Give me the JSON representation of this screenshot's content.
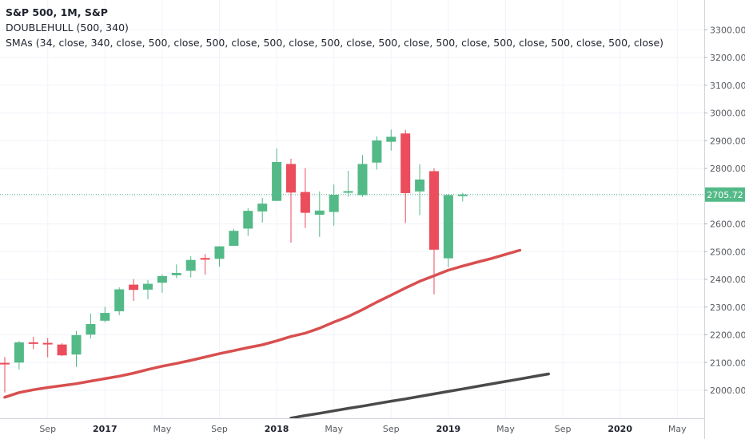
{
  "legend": {
    "title": "S&P 500, 1M, S&P",
    "line2": "DOUBLEHULL (500, 340)",
    "line3": "SMAs (34, close, 340, close, 500, close, 500, close, 500, close, 500, close, 500, close, 500, close, 500, close, 500, close, 500, close)"
  },
  "price_label": "2705.72",
  "colors": {
    "up": "#53b987",
    "down": "#eb4d5c",
    "sma_red": "#d84f4f",
    "sma_dark": "#4a4a4a",
    "grid": "#f0f3fa",
    "price_line": "#53b987",
    "axis_text": "#55595f"
  },
  "chart_data": {
    "type": "candlestick",
    "interval": "1M",
    "y_axis_side": "right",
    "ylim": [
      1900,
      3390
    ],
    "yticks": [
      2000,
      2100,
      2200,
      2300,
      2400,
      2500,
      2600,
      2700,
      2800,
      2900,
      3000,
      3100,
      3200,
      3300
    ],
    "ytick_labels": [
      "2000.00",
      "2100.00",
      "2200.00",
      "2300.00",
      "2400.00",
      "2500.00",
      "2600.00",
      "2700.00",
      "2800.00",
      "2900.00",
      "3000.00",
      "3100.00",
      "3200.00",
      "3300.00"
    ],
    "x_labels": [
      {
        "text": "Sep",
        "month_index": 3,
        "bold": false
      },
      {
        "text": "2017",
        "month_index": 7,
        "bold": true
      },
      {
        "text": "May",
        "month_index": 11,
        "bold": false
      },
      {
        "text": "Sep",
        "month_index": 15,
        "bold": false
      },
      {
        "text": "2018",
        "month_index": 19,
        "bold": true
      },
      {
        "text": "May",
        "month_index": 23,
        "bold": false
      },
      {
        "text": "Sep",
        "month_index": 27,
        "bold": false
      },
      {
        "text": "2019",
        "month_index": 31,
        "bold": true
      },
      {
        "text": "May",
        "month_index": 35,
        "bold": false
      },
      {
        "text": "Sep",
        "month_index": 39,
        "bold": false
      },
      {
        "text": "2020",
        "month_index": 43,
        "bold": true
      },
      {
        "text": "May",
        "month_index": 47,
        "bold": false
      }
    ],
    "candles": [
      {
        "date": "2016-06",
        "o": 2099,
        "h": 2120,
        "l": 1992,
        "c": 2098
      },
      {
        "date": "2016-07",
        "o": 2100,
        "h": 2178,
        "l": 2075,
        "c": 2173
      },
      {
        "date": "2016-08",
        "o": 2173,
        "h": 2193,
        "l": 2148,
        "c": 2171
      },
      {
        "date": "2016-09",
        "o": 2171,
        "h": 2188,
        "l": 2119,
        "c": 2168
      },
      {
        "date": "2016-10",
        "o": 2165,
        "h": 2170,
        "l": 2123,
        "c": 2126
      },
      {
        "date": "2016-11",
        "o": 2129,
        "h": 2214,
        "l": 2084,
        "c": 2199
      },
      {
        "date": "2016-12",
        "o": 2201,
        "h": 2277,
        "l": 2187,
        "c": 2239
      },
      {
        "date": "2017-01",
        "o": 2251,
        "h": 2301,
        "l": 2245,
        "c": 2279
      },
      {
        "date": "2017-02",
        "o": 2285,
        "h": 2371,
        "l": 2271,
        "c": 2364
      },
      {
        "date": "2017-03",
        "o": 2381,
        "h": 2401,
        "l": 2322,
        "c": 2362
      },
      {
        "date": "2017-04",
        "o": 2363,
        "h": 2398,
        "l": 2328,
        "c": 2384
      },
      {
        "date": "2017-05",
        "o": 2388,
        "h": 2418,
        "l": 2352,
        "c": 2412
      },
      {
        "date": "2017-06",
        "o": 2415,
        "h": 2454,
        "l": 2405,
        "c": 2423
      },
      {
        "date": "2017-07",
        "o": 2431,
        "h": 2484,
        "l": 2407,
        "c": 2470
      },
      {
        "date": "2017-08",
        "o": 2477,
        "h": 2491,
        "l": 2417,
        "c": 2471
      },
      {
        "date": "2017-09",
        "o": 2474,
        "h": 2519,
        "l": 2446,
        "c": 2519
      },
      {
        "date": "2017-10",
        "o": 2521,
        "h": 2582,
        "l": 2520,
        "c": 2575
      },
      {
        "date": "2017-11",
        "o": 2583,
        "h": 2657,
        "l": 2557,
        "c": 2647
      },
      {
        "date": "2017-12",
        "o": 2645,
        "h": 2694,
        "l": 2605,
        "c": 2673
      },
      {
        "date": "2018-01",
        "o": 2683,
        "h": 2872,
        "l": 2682,
        "c": 2823
      },
      {
        "date": "2018-02",
        "o": 2816,
        "h": 2835,
        "l": 2532,
        "c": 2713
      },
      {
        "date": "2018-03",
        "o": 2715,
        "h": 2801,
        "l": 2585,
        "c": 2640
      },
      {
        "date": "2018-04",
        "o": 2633,
        "h": 2717,
        "l": 2553,
        "c": 2648
      },
      {
        "date": "2018-05",
        "o": 2643,
        "h": 2742,
        "l": 2594,
        "c": 2705
      },
      {
        "date": "2018-06",
        "o": 2718,
        "h": 2791,
        "l": 2698,
        "c": 2718
      },
      {
        "date": "2018-07",
        "o": 2704,
        "h": 2848,
        "l": 2698,
        "c": 2816
      },
      {
        "date": "2018-08",
        "o": 2821,
        "h": 2916,
        "l": 2796,
        "c": 2901
      },
      {
        "date": "2018-09",
        "o": 2896,
        "h": 2940,
        "l": 2864,
        "c": 2914
      },
      {
        "date": "2018-10",
        "o": 2926,
        "h": 2939,
        "l": 2603,
        "c": 2711
      },
      {
        "date": "2018-11",
        "o": 2717,
        "h": 2815,
        "l": 2631,
        "c": 2760
      },
      {
        "date": "2018-12",
        "o": 2790,
        "h": 2800,
        "l": 2346,
        "c": 2507
      },
      {
        "date": "2019-01",
        "o": 2476,
        "h": 2708,
        "l": 2443,
        "c": 2704
      },
      {
        "date": "2019-02",
        "o": 2702,
        "h": 2712,
        "l": 2681,
        "c": 2706
      }
    ],
    "series": [
      {
        "color": "#d84f4f",
        "values": [
          1975,
          1992,
          2002,
          2010,
          2017,
          2024,
          2033,
          2042,
          2051,
          2062,
          2075,
          2087,
          2097,
          2108,
          2120,
          2132,
          2143,
          2154,
          2164,
          2178,
          2194,
          2206,
          2224,
          2246,
          2266,
          2291,
          2318,
          2343,
          2369,
          2393,
          2413,
          2433,
          2448,
          2462,
          2475,
          2490,
          2505
        ]
      },
      {
        "color": "#4a4a4a",
        "x_start": 20,
        "values": [
          1900,
          1909,
          1917,
          1926,
          1935,
          1943,
          1952,
          1961,
          1969,
          1978,
          1987,
          1996,
          2005,
          2014,
          2023,
          2032,
          2041,
          2050,
          2059
        ]
      }
    ],
    "last_price": 2705.72
  }
}
